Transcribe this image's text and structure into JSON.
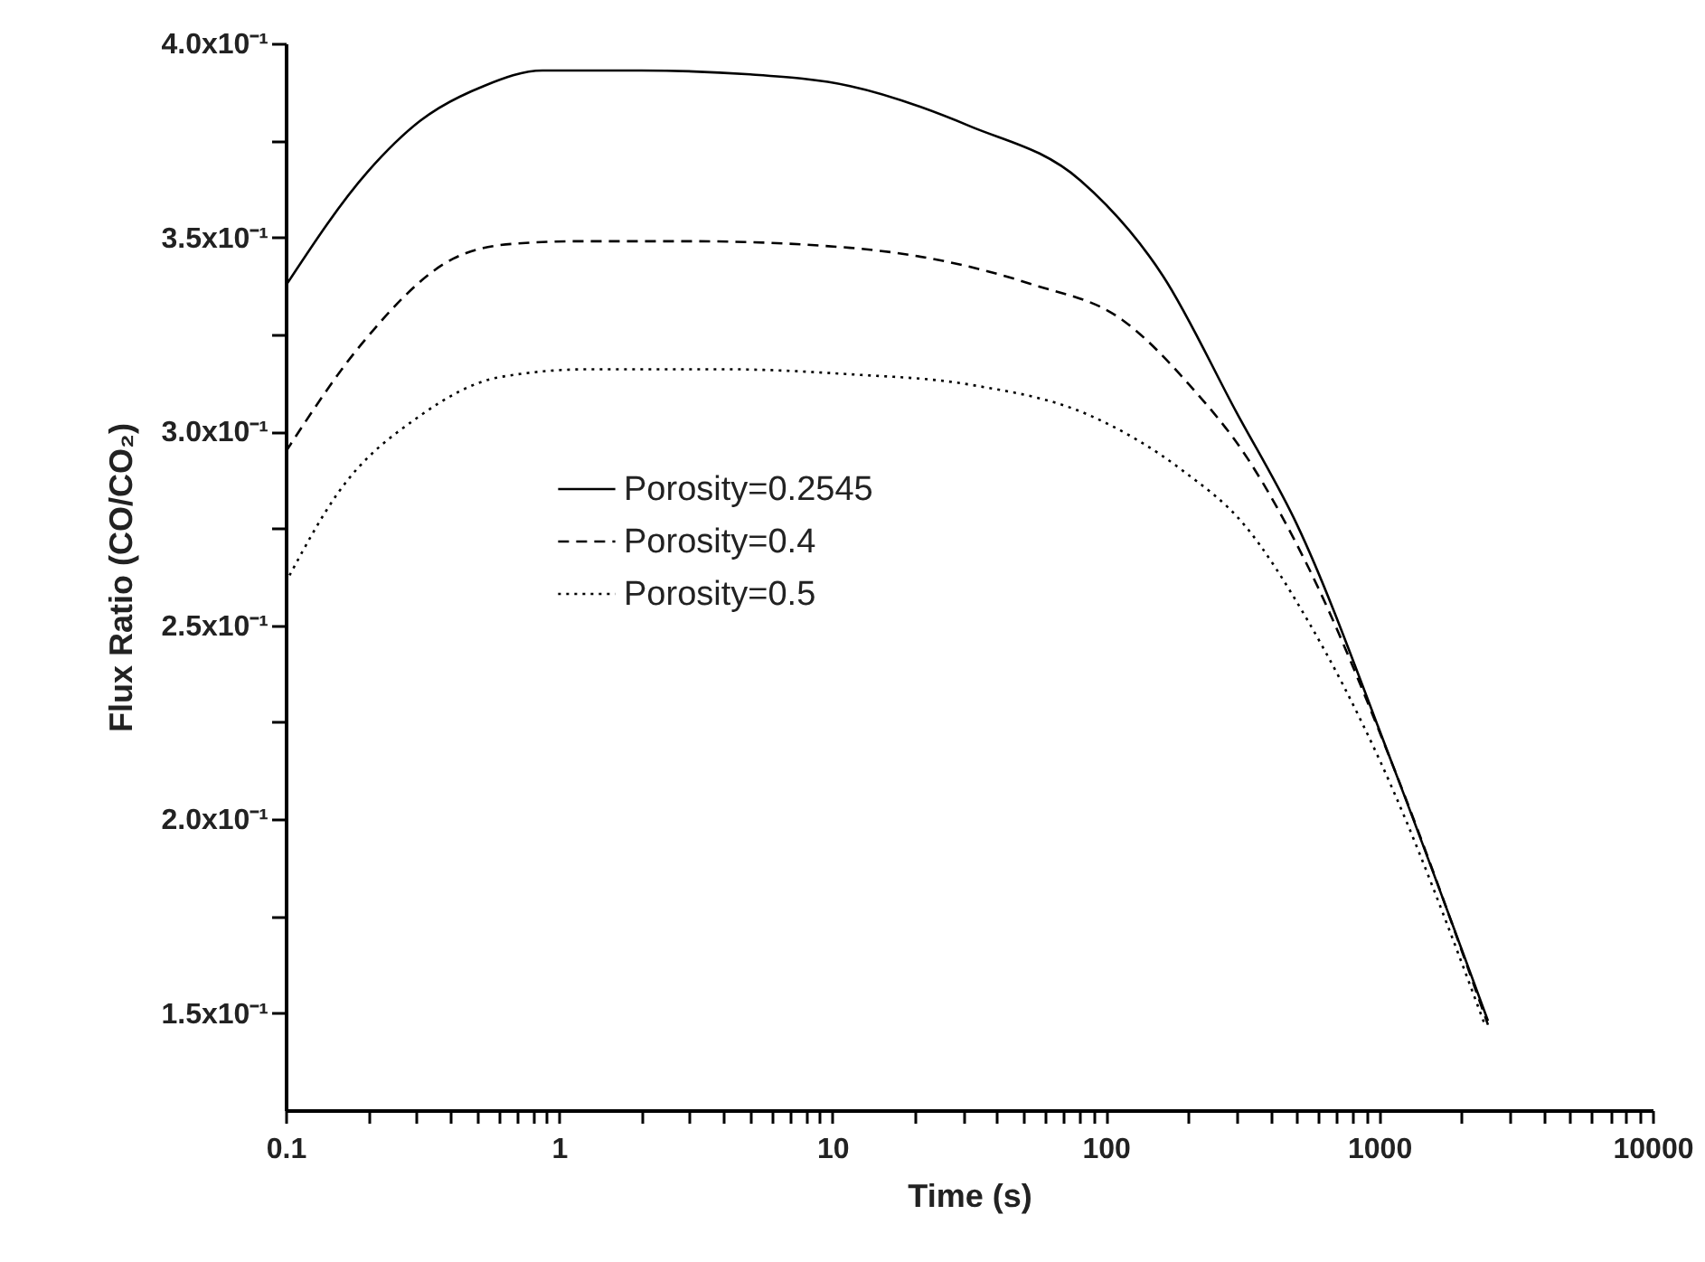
{
  "chart_data": {
    "type": "line",
    "xlabel": "Time (s)",
    "ylabel": "Flux Ratio (CO/CO₂)",
    "log": "x",
    "legend": "left",
    "grid": false,
    "marker": "none",
    "xlim": [
      0.1,
      10000
    ],
    "ylim": [
      0.125,
      0.4
    ],
    "xticks": [
      0.1,
      {
        "value": 0.2,
        "label": null
      },
      {
        "value": 0.3,
        "label": null
      },
      {
        "value": 0.4,
        "label": null
      },
      {
        "value": 0.5,
        "label": null
      },
      {
        "value": 0.6,
        "label": null
      },
      {
        "value": 0.7,
        "label": null
      },
      {
        "value": 0.8,
        "label": null
      },
      {
        "value": 0.9,
        "label": null
      },
      1,
      {
        "value": 2,
        "label": null
      },
      {
        "value": 3,
        "label": null
      },
      {
        "value": 4,
        "label": null
      },
      {
        "value": 5,
        "label": null
      },
      {
        "value": 6,
        "label": null
      },
      {
        "value": 7,
        "label": null
      },
      {
        "value": 8,
        "label": null
      },
      {
        "value": 9,
        "label": null
      },
      10,
      {
        "value": 20,
        "label": null
      },
      {
        "value": 30,
        "label": null
      },
      {
        "value": 40,
        "label": null
      },
      {
        "value": 50,
        "label": null
      },
      {
        "value": 60,
        "label": null
      },
      {
        "value": 70,
        "label": null
      },
      {
        "value": 80,
        "label": null
      },
      {
        "value": 90,
        "label": null
      },
      100,
      {
        "value": 200,
        "label": null
      },
      {
        "value": 300,
        "label": null
      },
      {
        "value": 400,
        "label": null
      },
      {
        "value": 500,
        "label": null
      },
      {
        "value": 600,
        "label": null
      },
      {
        "value": 700,
        "label": null
      },
      {
        "value": 800,
        "label": null
      },
      {
        "value": 900,
        "label": null
      },
      1000,
      {
        "value": 2000,
        "label": null
      },
      {
        "value": 3000,
        "label": null
      },
      {
        "value": 4000,
        "label": null
      },
      {
        "value": 5000,
        "label": null
      },
      {
        "value": 6000,
        "label": null
      },
      {
        "value": 7000,
        "label": null
      },
      {
        "value": 8000,
        "label": null
      },
      {
        "value": 9000,
        "label": null
      },
      10000
    ],
    "yticks": [
      {
        "value": 0.15,
        "label": "1.5x10⁻¹"
      },
      {
        "value": 0.175,
        "label": null
      },
      {
        "value": 0.2,
        "label": "2.0x10⁻¹"
      },
      {
        "value": 0.225,
        "label": null
      },
      {
        "value": 0.25,
        "label": "2.5x10⁻¹"
      },
      {
        "value": 0.275,
        "label": null
      },
      {
        "value": 0.3,
        "label": "3.0x10⁻¹"
      },
      {
        "value": 0.325,
        "label": null
      },
      {
        "value": 0.35,
        "label": "3.5x10⁻¹"
      },
      {
        "value": 0.375,
        "label": null
      },
      {
        "value": 0.4,
        "label": "4.0x10⁻¹"
      }
    ],
    "series": [
      {
        "name": "Porosity=0.2545",
        "color": "#000000",
        "line_style": "solid",
        "x": [
          0.1,
          0.2,
          0.31,
          0.53,
          0.87,
          2,
          5,
          11.6,
          32,
          81,
          162,
          300,
          500,
          1120,
          2500
        ],
        "values": [
          0.3375,
          0.367,
          0.38,
          0.389,
          0.393,
          0.393,
          0.392,
          0.389,
          0.3786,
          0.3646,
          0.34,
          0.305,
          0.276,
          0.214,
          0.148
        ]
      },
      {
        "name": "Porosity=0.4",
        "color": "#000000",
        "line_style": "dashed",
        "x": [
          0.1,
          0.19,
          0.41,
          0.67,
          1.2,
          3,
          11.6,
          53,
          115,
          202,
          330,
          550,
          1120,
          2500
        ],
        "values": [
          0.2947,
          0.3226,
          0.3445,
          0.3483,
          0.349,
          0.349,
          0.3473,
          0.338,
          0.3287,
          0.312,
          0.293,
          0.265,
          0.214,
          0.147
        ]
      },
      {
        "name": "Porosity=0.5",
        "color": "#000000",
        "line_style": "dotted",
        "x": [
          0.1,
          0.155,
          0.31,
          0.61,
          1.3,
          4,
          11.6,
          32,
          88,
          190,
          320,
          550,
          1000,
          2450
        ],
        "values": [
          0.261,
          0.284,
          0.304,
          0.314,
          0.316,
          0.316,
          0.3147,
          0.312,
          0.304,
          0.29,
          0.276,
          0.251,
          0.2155,
          0.1465
        ]
      }
    ]
  }
}
